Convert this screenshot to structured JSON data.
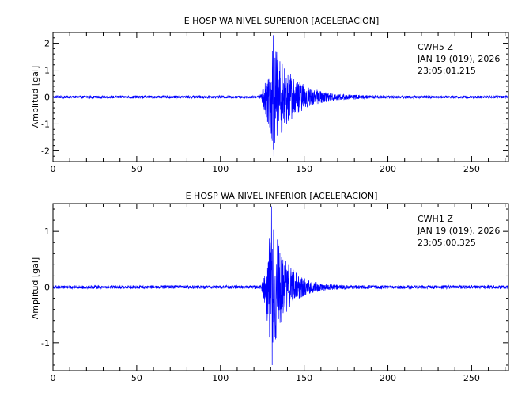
{
  "colors": {
    "trace": "#0000ff",
    "axes": "#000000",
    "background": "#ffffff"
  },
  "chart_data": [
    {
      "type": "line",
      "title": "E HOSP WA NIVEL SUPERIOR [ACELERACION]",
      "xlabel": "",
      "ylabel": "Amplitud [gal]",
      "xlim": [
        0,
        272
      ],
      "ylim": [
        -2.4,
        2.4
      ],
      "x_ticks": [
        0,
        50,
        100,
        150,
        200,
        250
      ],
      "y_ticks": [
        -2,
        -1,
        0,
        1,
        2
      ],
      "grid": false,
      "station": "CWH5   Z",
      "date": "JAN 19 (019), 2026",
      "time": "23:05:01.215",
      "series": [
        {
          "signal_onset": 123,
          "peak_time": 131.5,
          "peak_amplitude": 2.3,
          "min_amplitude": -2.2,
          "coda_end": 185,
          "noise_level": 0.05
        }
      ]
    },
    {
      "type": "line",
      "title": "E HOSP WA NIVEL INFERIOR [ACELERACION]",
      "xlabel": "",
      "ylabel": "Amplitud [gal]",
      "xlim": [
        0,
        272
      ],
      "ylim": [
        -1.5,
        1.5
      ],
      "x_ticks": [
        0,
        50,
        100,
        150,
        200,
        250
      ],
      "y_ticks": [
        -1,
        0,
        1
      ],
      "grid": false,
      "station": "CWH1   Z",
      "date": "JAN 19 (019), 2026",
      "time": "23:05:00.325",
      "series": [
        {
          "signal_onset": 124,
          "peak_time": 130.5,
          "peak_amplitude": 1.45,
          "min_amplitude": -1.4,
          "coda_end": 170,
          "noise_level": 0.03
        }
      ]
    }
  ]
}
